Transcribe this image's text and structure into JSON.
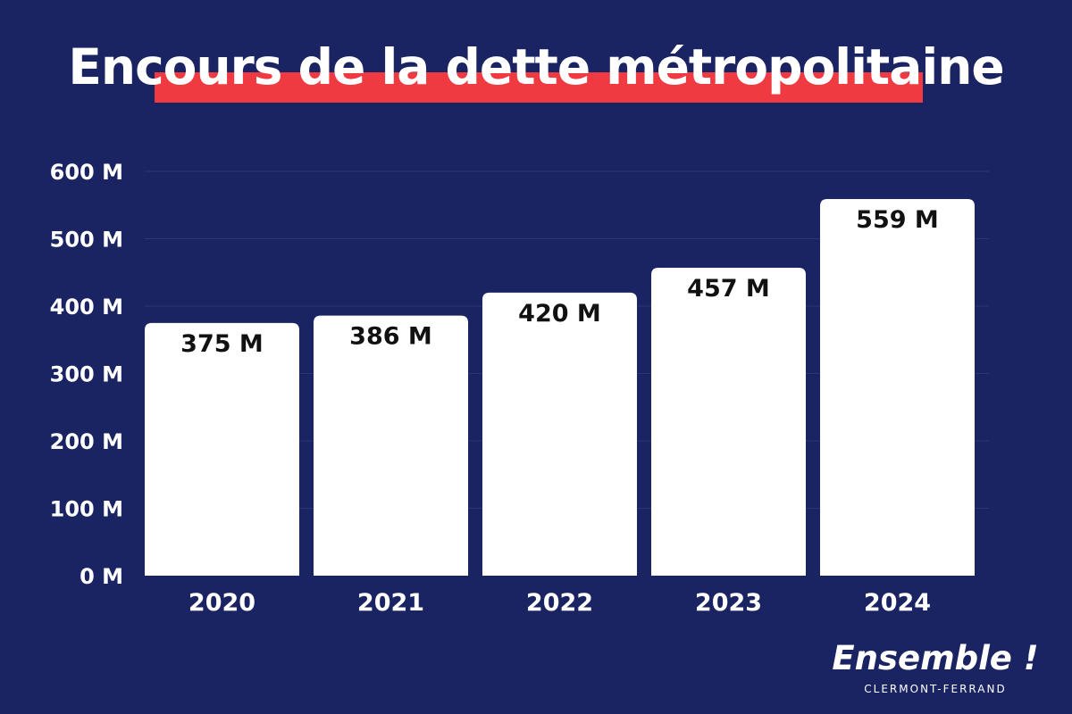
{
  "chart_data": {
    "type": "bar",
    "title": "Encours de la dette métropolitaine",
    "categories": [
      "2020",
      "2021",
      "2022",
      "2023",
      "2024"
    ],
    "values": [
      375,
      386,
      420,
      457,
      559
    ],
    "value_labels": [
      "375 M",
      "386 M",
      "420 M",
      "457 M",
      "559 M"
    ],
    "y_ticks": [
      0,
      100,
      200,
      300,
      400,
      500,
      600
    ],
    "y_tick_labels": [
      "0 M",
      "100 M",
      "200 M",
      "300 M",
      "400 M",
      "500 M",
      "600 M"
    ],
    "ylim": [
      0,
      600
    ],
    "grid": true,
    "colors": {
      "background": "#1b2463",
      "bar": "#ffffff",
      "title_highlight": "#ef3a41",
      "text_light": "#ffffff",
      "text_dark": "#111111",
      "grid": "#2c3676"
    }
  },
  "brand": {
    "name": "Ensemble !",
    "subtitle": "CLERMONT-FERRAND"
  }
}
